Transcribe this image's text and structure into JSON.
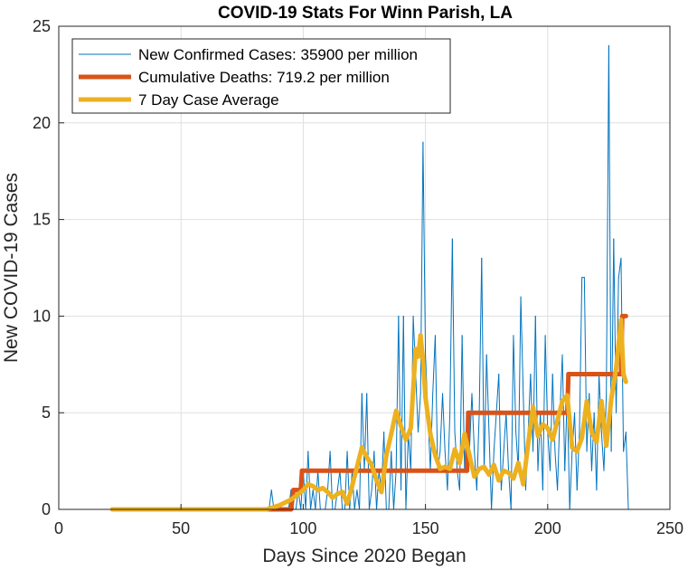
{
  "chart_data": {
    "type": "line",
    "title": "COVID-19 Stats For Winn Parish, LA",
    "xlabel": "Days Since 2020 Began",
    "ylabel": "New COVID-19 Cases",
    "xlim": [
      0,
      250
    ],
    "ylim": [
      0,
      25
    ],
    "xticks": [
      0,
      50,
      100,
      150,
      200,
      250
    ],
    "yticks": [
      0,
      5,
      10,
      15,
      20,
      25
    ],
    "grid": true,
    "legend_position": "top-left",
    "series": [
      {
        "name": "New Confirmed Cases: 35900 per million",
        "color": "#0072BD",
        "style": "thin",
        "x": [
          22,
          80,
          85,
          86,
          87,
          88,
          89,
          90,
          91,
          92,
          93,
          94,
          95,
          96,
          97,
          98,
          99,
          100,
          101,
          102,
          103,
          104,
          105,
          106,
          107,
          108,
          109,
          110,
          111,
          112,
          113,
          114,
          115,
          116,
          117,
          118,
          119,
          120,
          121,
          122,
          123,
          124,
          125,
          126,
          127,
          128,
          129,
          130,
          131,
          132,
          133,
          134,
          135,
          136,
          137,
          138,
          139,
          140,
          141,
          142,
          143,
          144,
          145,
          146,
          147,
          148,
          149,
          150,
          151,
          152,
          153,
          154,
          155,
          156,
          157,
          158,
          159,
          160,
          161,
          162,
          163,
          164,
          165,
          166,
          167,
          168,
          169,
          170,
          171,
          172,
          173,
          174,
          175,
          176,
          177,
          178,
          179,
          180,
          181,
          182,
          183,
          184,
          185,
          186,
          187,
          188,
          189,
          190,
          191,
          192,
          193,
          194,
          195,
          196,
          197,
          198,
          199,
          200,
          201,
          202,
          203,
          204,
          205,
          206,
          207,
          208,
          209,
          210,
          211,
          212,
          213,
          214,
          215,
          216,
          217,
          218,
          219,
          220,
          221,
          222,
          223,
          224,
          225,
          226,
          227,
          228,
          229,
          230,
          231,
          232,
          233
        ],
        "y": [
          0,
          0,
          0,
          0,
          1,
          0,
          0,
          0,
          0,
          0,
          0,
          0,
          1,
          0,
          0,
          1,
          0,
          2,
          0,
          3,
          0,
          1,
          0,
          2,
          0,
          0,
          0,
          1,
          3,
          0,
          0,
          1,
          2,
          0,
          0,
          3,
          0,
          2,
          0,
          1,
          0,
          6,
          2,
          6,
          0,
          1,
          3,
          0,
          2,
          1,
          4,
          0,
          0,
          3,
          0,
          2,
          10,
          1,
          10,
          0,
          4,
          2,
          10,
          7,
          4,
          6,
          19,
          8,
          5,
          2,
          6,
          9,
          2,
          3,
          6,
          3,
          1,
          5,
          14,
          4,
          2,
          1,
          9,
          2,
          5,
          3,
          6,
          3,
          1,
          5,
          13,
          2,
          8,
          4,
          0,
          3,
          5,
          7,
          1,
          3,
          5,
          2,
          0,
          9,
          4,
          2,
          11,
          6,
          1,
          4,
          7,
          3,
          10,
          2,
          5,
          1,
          9,
          4,
          2,
          7,
          3,
          1,
          5,
          8,
          2,
          6,
          0,
          3,
          5,
          1,
          4,
          12,
          12,
          3,
          6,
          2,
          5,
          1,
          7,
          4,
          2,
          6,
          24,
          3,
          14,
          5,
          12,
          13,
          3,
          4,
          0
        ]
      },
      {
        "name": "Cumulative Deaths: 719.2 per million",
        "color": "#D95319",
        "style": "thick",
        "x": [
          22,
          95,
          96,
          97,
          98,
          99,
          99.5,
          167,
          167.5,
          208,
          208.5,
          230,
          230.5,
          232
        ],
        "y": [
          0,
          0,
          1,
          1,
          1,
          1,
          2,
          2,
          5,
          5,
          7,
          7,
          10,
          10
        ]
      },
      {
        "name": "7 Day Case Average",
        "color": "#EDB120",
        "style": "thick",
        "x": [
          22,
          85,
          90,
          95,
          98,
          100,
          102,
          104,
          106,
          108,
          110,
          112,
          114,
          116,
          118,
          120,
          122,
          124,
          126,
          128,
          130,
          132,
          134,
          136,
          138,
          140,
          142,
          144,
          146,
          147,
          148,
          149,
          150,
          152,
          154,
          156,
          158,
          160,
          162,
          164,
          166,
          168,
          170,
          172,
          174,
          176,
          178,
          180,
          182,
          184,
          186,
          188,
          190,
          192,
          194,
          196,
          198,
          200,
          202,
          204,
          206,
          208,
          210,
          212,
          214,
          216,
          218,
          220,
          222,
          224,
          226,
          228,
          230,
          231,
          232
        ],
        "y": [
          0,
          0,
          0.2,
          0.5,
          0.8,
          1.0,
          1.3,
          1.2,
          1.0,
          1.1,
          0.9,
          0.6,
          0.8,
          0.9,
          0.3,
          1.2,
          2.2,
          3.2,
          2.7,
          2.3,
          1.5,
          0.9,
          2.8,
          3.9,
          5.1,
          4.3,
          3.6,
          4.2,
          8.3,
          7.9,
          9.0,
          7.7,
          5.8,
          3.9,
          2.8,
          2.1,
          2.2,
          2.1,
          3.1,
          2.4,
          3.9,
          2.8,
          1.7,
          2.1,
          2.2,
          1.8,
          2.3,
          1.5,
          2.0,
          1.9,
          1.6,
          2.4,
          1.3,
          3.4,
          5.3,
          3.8,
          4.4,
          4.2,
          3.6,
          4.6,
          5.6,
          5.9,
          3.2,
          3.0,
          3.7,
          5.6,
          4.0,
          3.5,
          5.6,
          3.3,
          5.7,
          7.3,
          9.8,
          7.0,
          6.6
        ]
      }
    ]
  }
}
